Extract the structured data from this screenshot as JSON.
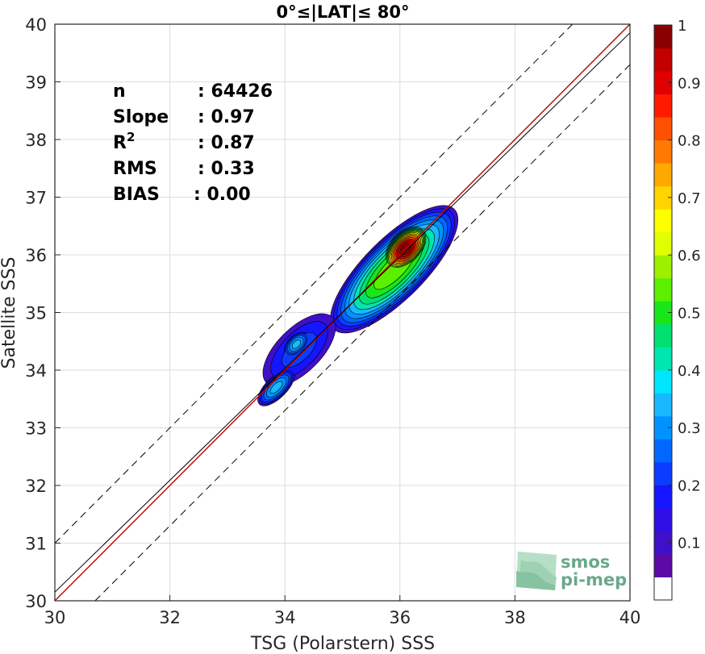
{
  "chart_data": {
    "type": "heatmap",
    "title": "0°≤|LAT|≤ 80°",
    "xlabel": "TSG (Polarstern) SSS",
    "ylabel": "Satellite SSS",
    "xlim": [
      30,
      40
    ],
    "ylim": [
      30,
      40
    ],
    "xticks": [
      "30",
      "32",
      "34",
      "36",
      "38",
      "40"
    ],
    "yticks": [
      "30",
      "31",
      "32",
      "33",
      "34",
      "35",
      "36",
      "37",
      "38",
      "39",
      "40"
    ],
    "grid": true,
    "stats": [
      {
        "label": "n",
        "value": ": 64426"
      },
      {
        "label": "Slope",
        "value": ": 0.97"
      },
      {
        "label": "R",
        "sup": "2",
        "value": ": 0.87"
      },
      {
        "label": "RMS",
        "value": ": 0.33"
      },
      {
        "label": "BIAS",
        "value": ": 0.00"
      }
    ],
    "lines": [
      {
        "name": "identity",
        "color": "#c00000",
        "points": [
          [
            30,
            30
          ],
          [
            40,
            40
          ]
        ]
      },
      {
        "name": "fit",
        "color": "#000000",
        "points": [
          [
            30,
            30.15
          ],
          [
            40,
            39.85
          ]
        ]
      },
      {
        "name": "upper-bound",
        "color": "#000000",
        "dash": true,
        "points": [
          [
            30,
            31
          ],
          [
            39,
            40
          ]
        ]
      },
      {
        "name": "lower-bound",
        "color": "#000000",
        "dash": true,
        "points": [
          [
            30.7,
            30
          ],
          [
            40,
            39.3
          ]
        ]
      }
    ],
    "density_peaks": [
      {
        "x": 36.1,
        "y": 36.1,
        "value": 1.0
      },
      {
        "x": 35.5,
        "y": 35.6,
        "value": 0.55
      },
      {
        "x": 35.9,
        "y": 36.0,
        "value": 0.7
      },
      {
        "x": 34.2,
        "y": 34.45,
        "value": 0.33
      },
      {
        "x": 33.85,
        "y": 33.7,
        "value": 0.33
      },
      {
        "x": 34.8,
        "y": 34.8,
        "value": 0.15
      }
    ],
    "colorbar": {
      "range": [
        0,
        1
      ],
      "ticks": [
        "0.1",
        "0.2",
        "0.3",
        "0.4",
        "0.5",
        "0.6",
        "0.7",
        "0.8",
        "0.9",
        "1"
      ],
      "colors": [
        "#ffffff",
        "#5b0aa6",
        "#3f10c9",
        "#2e0fe5",
        "#1515ff",
        "#0b3cff",
        "#0068ff",
        "#0093ff",
        "#19b8ff",
        "#00e6ff",
        "#00e6b0",
        "#00e070",
        "#19e619",
        "#5af000",
        "#9df000",
        "#e0ff00",
        "#ffff00",
        "#ffd400",
        "#ffa800",
        "#ff7a00",
        "#ff4f00",
        "#ff1a00",
        "#e00000",
        "#c20000",
        "#8a0000"
      ]
    },
    "logo_text": [
      "smos",
      "pi-mep"
    ]
  }
}
